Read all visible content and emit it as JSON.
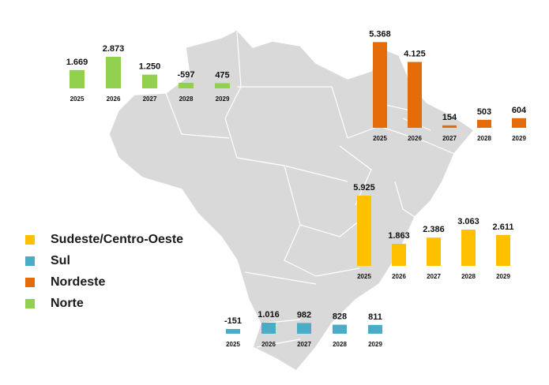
{
  "legend": [
    {
      "label": "Sudeste/Centro-Oeste",
      "color": "#FFC000"
    },
    {
      "label": "Sul",
      "color": "#4BACC6"
    },
    {
      "label": "Nordeste",
      "color": "#E36C09"
    },
    {
      "label": "Norte",
      "color": "#92D050"
    }
  ],
  "map": {
    "fill": "#d9d9d9",
    "border": "#ffffff"
  },
  "chart_data": [
    {
      "type": "bar",
      "series": [
        {
          "name": "Norte",
          "color": "#92D050",
          "values": [
            1669,
            2873,
            1250,
            -597,
            475
          ]
        }
      ],
      "categories": [
        "2025",
        "2026",
        "2027",
        "2028",
        "2029"
      ],
      "labels": [
        "1.669",
        "2.873",
        "1.250",
        "-597",
        "475"
      ]
    },
    {
      "type": "bar",
      "series": [
        {
          "name": "Nordeste",
          "color": "#E36C09",
          "values": [
            5368,
            4125,
            154,
            503,
            604
          ]
        }
      ],
      "categories": [
        "2025",
        "2026",
        "2027",
        "2028",
        "2029"
      ],
      "labels": [
        "5.368",
        "4.125",
        "154",
        "503",
        "604"
      ]
    },
    {
      "type": "bar",
      "series": [
        {
          "name": "Sudeste/Centro-Oeste",
          "color": "#FFC000",
          "values": [
            5925,
            1863,
            2386,
            3063,
            2611
          ]
        }
      ],
      "categories": [
        "2025",
        "2026",
        "2027",
        "2028",
        "2029"
      ],
      "labels": [
        "5.925",
        "1.863",
        "2.386",
        "3.063",
        "2.611"
      ]
    },
    {
      "type": "bar",
      "series": [
        {
          "name": "Sul",
          "color": "#4BACC6",
          "values": [
            -151,
            1016,
            982,
            828,
            811
          ]
        }
      ],
      "categories": [
        "2025",
        "2026",
        "2027",
        "2028",
        "2029"
      ],
      "labels": [
        "-151",
        "1.016",
        "982",
        "828",
        "811"
      ]
    }
  ]
}
